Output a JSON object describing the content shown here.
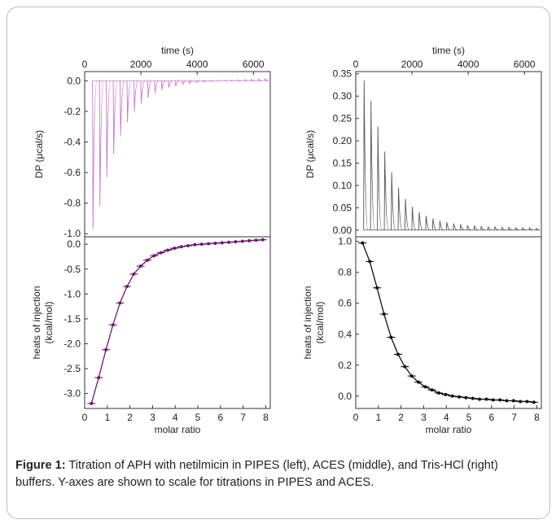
{
  "caption": {
    "label": "Figure 1:",
    "text": " Titration of APH with netilmicin in PIPES (left), ACES (middle), and Tris-HCl (right) buffers. Y-axes are shown to scale for titrations in PIPES and ACES."
  },
  "chart_data": [
    {
      "type": "line",
      "panel": "left-top",
      "xlabel": "time (s)",
      "ylabel": "DP (μcal/s)",
      "xlim": [
        0,
        6600
      ],
      "ylim": [
        -1.02,
        0.06
      ],
      "xticks": [
        0,
        2000,
        4000,
        6000
      ],
      "yticks": [
        0.0,
        -0.2,
        -0.4,
        -0.6,
        -0.8,
        -1.0
      ],
      "x_axis_position": "top",
      "color": "#c479c9",
      "injection_times": [
        280,
        525,
        770,
        1015,
        1260,
        1505,
        1750,
        1995,
        2240,
        2485,
        2730,
        2975,
        3220,
        3465,
        3710,
        3955,
        4200,
        4445,
        4690,
        4935,
        5180,
        5425,
        5670,
        5915,
        6160,
        6405
      ],
      "peak_values": [
        -0.97,
        -0.82,
        -0.63,
        -0.48,
        -0.36,
        -0.27,
        -0.2,
        -0.15,
        -0.11,
        -0.08,
        -0.06,
        -0.045,
        -0.035,
        -0.025,
        -0.018,
        -0.012,
        -0.008,
        -0.004,
        -0.001,
        0.002,
        0.004,
        0.006,
        0.008,
        0.01,
        0.012,
        0.013
      ],
      "baseline": 0.0
    },
    {
      "type": "line",
      "panel": "left-bottom",
      "xlabel": "molar ratio",
      "ylabel": "heats of injection (kcal/mol)",
      "xlim": [
        0,
        8.2
      ],
      "ylim": [
        -3.3,
        0.15
      ],
      "xticks": [
        0,
        1,
        2,
        3,
        4,
        5,
        6,
        7,
        8
      ],
      "yticks": [
        0.0,
        -0.5,
        -1.0,
        -1.5,
        -2.0,
        -2.5,
        -3.0
      ],
      "color": "#6a1b6e",
      "x": [
        0.3,
        0.62,
        0.94,
        1.25,
        1.56,
        1.87,
        2.17,
        2.47,
        2.77,
        3.07,
        3.37,
        3.67,
        3.97,
        4.27,
        4.57,
        4.87,
        5.17,
        5.47,
        5.77,
        6.07,
        6.37,
        6.67,
        6.97,
        7.27,
        7.57,
        7.87
      ],
      "y": [
        -3.2,
        -2.68,
        -2.12,
        -1.62,
        -1.18,
        -0.85,
        -0.6,
        -0.44,
        -0.32,
        -0.23,
        -0.17,
        -0.12,
        -0.08,
        -0.05,
        -0.03,
        -0.01,
        0.0,
        0.01,
        0.02,
        0.03,
        0.04,
        0.05,
        0.06,
        0.07,
        0.08,
        0.09
      ]
    },
    {
      "type": "line",
      "panel": "right-top",
      "xlabel": "time (s)",
      "ylabel": "DP (μcal/s)",
      "xlim": [
        0,
        6600
      ],
      "ylim": [
        -0.015,
        0.355
      ],
      "xticks": [
        0,
        2000,
        4000,
        6000
      ],
      "yticks": [
        0.0,
        0.05,
        0.1,
        0.15,
        0.2,
        0.25,
        0.3,
        0.35
      ],
      "x_axis_position": "top",
      "color": "#555555",
      "injection_times": [
        280,
        525,
        770,
        1015,
        1260,
        1505,
        1750,
        1995,
        2240,
        2485,
        2730,
        2975,
        3220,
        3465,
        3710,
        3955,
        4200,
        4445,
        4690,
        4935,
        5180,
        5425,
        5670,
        5915,
        6160,
        6405
      ],
      "peak_values": [
        0.335,
        0.29,
        0.232,
        0.176,
        0.13,
        0.095,
        0.07,
        0.052,
        0.04,
        0.032,
        0.026,
        0.021,
        0.018,
        0.015,
        0.013,
        0.011,
        0.01,
        0.009,
        0.008,
        0.007,
        0.006,
        0.006,
        0.005,
        0.005,
        0.005,
        0.004
      ],
      "baseline": 0.0
    },
    {
      "type": "line",
      "panel": "right-bottom",
      "xlabel": "molar ratio",
      "ylabel": "heats of injection (kcal/mol)",
      "xlim": [
        0,
        8.2
      ],
      "ylim": [
        -0.08,
        1.03
      ],
      "xticks": [
        0,
        1,
        2,
        3,
        4,
        5,
        6,
        7,
        8
      ],
      "yticks": [
        0.0,
        0.2,
        0.4,
        0.6,
        0.8,
        1.0
      ],
      "color": "#111111",
      "x": [
        0.3,
        0.62,
        0.94,
        1.25,
        1.56,
        1.87,
        2.17,
        2.47,
        2.77,
        3.07,
        3.37,
        3.67,
        3.97,
        4.27,
        4.57,
        4.87,
        5.17,
        5.47,
        5.77,
        6.07,
        6.37,
        6.67,
        6.97,
        7.27,
        7.57,
        7.87
      ],
      "y": [
        0.99,
        0.87,
        0.7,
        0.53,
        0.38,
        0.27,
        0.19,
        0.13,
        0.09,
        0.06,
        0.04,
        0.02,
        0.01,
        0.0,
        -0.005,
        -0.01,
        -0.015,
        -0.02,
        -0.02,
        -0.025,
        -0.025,
        -0.03,
        -0.03,
        -0.035,
        -0.035,
        -0.04
      ]
    }
  ]
}
